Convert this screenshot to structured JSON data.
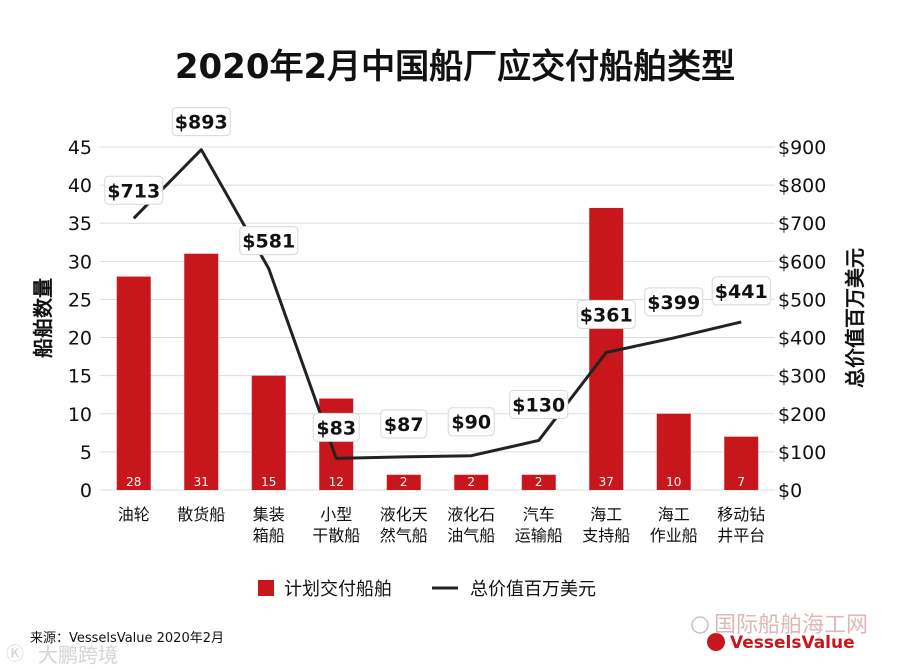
{
  "colors": {
    "bar": "#c8161d",
    "line": "#222222",
    "grid": "#dddddd"
  },
  "chart_data": {
    "type": "bar",
    "title": "2020年2月中国船厂应交付船舶类型",
    "categories": [
      [
        "油轮"
      ],
      [
        "散货船"
      ],
      [
        "集装",
        "箱船"
      ],
      [
        "小型",
        "干散船"
      ],
      [
        "液化天",
        "然气船"
      ],
      [
        "液化石",
        "油气船"
      ],
      [
        "汽车",
        "运输船"
      ],
      [
        "海工",
        "支持船"
      ],
      [
        "海工",
        "作业船"
      ],
      [
        "移动钻",
        "井平台"
      ]
    ],
    "series": [
      {
        "name": "计划交付船舶",
        "type": "bar",
        "axis": "left",
        "values": [
          28,
          31,
          15,
          12,
          2,
          2,
          2,
          37,
          10,
          7
        ]
      },
      {
        "name": "总价值百万美元",
        "type": "line",
        "axis": "right",
        "values": [
          713,
          893,
          581,
          83,
          87,
          90,
          130,
          361,
          399,
          441
        ]
      }
    ],
    "bar_labels": [
      "28",
      "31",
      "15",
      "12",
      "2",
      "2",
      "2",
      "37",
      "10",
      "7"
    ],
    "value_labels": [
      "$713",
      "$893",
      "$581",
      "$83",
      "$87",
      "$90",
      "$130",
      "$361",
      "$399",
      "$441"
    ],
    "ylabel_left": "船舶数量",
    "ylabel_right": "总价值百万美元",
    "ylim_left": [
      0,
      45
    ],
    "ylim_right": [
      0,
      900
    ],
    "yticks_left": [
      "0",
      "5",
      "10",
      "15",
      "20",
      "25",
      "30",
      "35",
      "40",
      "45"
    ],
    "yticks_right": [
      "$0",
      "$100",
      "$200",
      "$300",
      "$400",
      "$500",
      "$600",
      "$700",
      "$800",
      "$900"
    ],
    "grid": true,
    "legend": {
      "position": "bottom",
      "items": [
        "计划交付船舶",
        "总价值百万美元"
      ]
    }
  },
  "source": "来源：VesselsValue 2020年2月",
  "brand": "VesselsValue",
  "watermarks": {
    "wechat": "国际船舶海工网",
    "corner": "大鹏跨境"
  }
}
